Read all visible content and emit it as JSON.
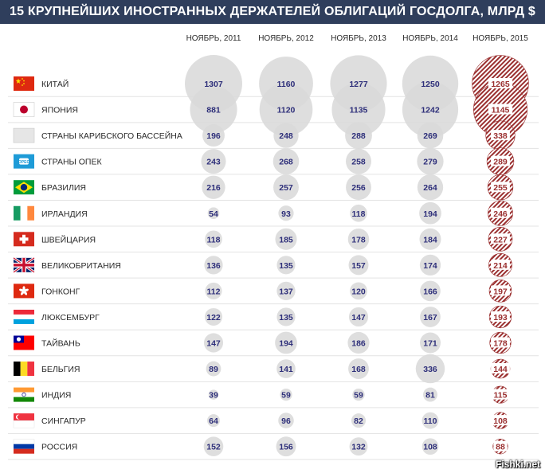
{
  "title": "15 КРУПНЕЙШИХ ИНОСТРАННЫХ ДЕРЖАТЕЛЕЙ ОБЛИГАЦИЙ ГОСДОЛГА, МЛРД $",
  "watermark": "Fishki.net",
  "colors": {
    "header_bg": "#2f3e5c",
    "bubble": "#d9d9d9",
    "bubble_text": "#2e2f7a",
    "highlight": "#9a2f2f",
    "highlight_text": "#9a2f2f",
    "row_separator": "#e3e3e3"
  },
  "chart_data": {
    "type": "bubble-table",
    "title": "15 КРУПНЕЙШИХ ИНОСТРАННЫХ ДЕРЖАТЕЛЕЙ ОБЛИГАЦИЙ ГОСДОЛГА, МЛРД $",
    "columns": [
      "НОЯБРЬ, 2011",
      "НОЯБРЬ, 2012",
      "НОЯБРЬ, 2013",
      "НОЯБРЬ, 2014",
      "НОЯБРЬ, 2015"
    ],
    "highlight_column": 4,
    "rows": [
      {
        "country": "КИТАЙ",
        "flag": "china-flag",
        "values": [
          1307,
          1160,
          1277,
          1250,
          1265
        ]
      },
      {
        "country": "ЯПОНИЯ",
        "flag": "japan-flag",
        "values": [
          881,
          1120,
          1135,
          1242,
          1145
        ]
      },
      {
        "country": "СТРАНЫ КАРИБСКОГО БАССЕЙНА",
        "flag": "caribbean-flag",
        "values": [
          196,
          248,
          288,
          269,
          338
        ]
      },
      {
        "country": "СТРАНЫ ОПЕК",
        "flag": "opec-flag",
        "values": [
          243,
          268,
          258,
          279,
          289
        ]
      },
      {
        "country": "БРАЗИЛИЯ",
        "flag": "brazil-flag",
        "values": [
          216,
          257,
          256,
          264,
          255
        ]
      },
      {
        "country": "ИРЛАНДИЯ",
        "flag": "ireland-flag",
        "values": [
          54,
          93,
          118,
          194,
          246
        ]
      },
      {
        "country": "ШВЕЙЦАРИЯ",
        "flag": "switzerland-flag",
        "values": [
          118,
          185,
          178,
          184,
          227
        ]
      },
      {
        "country": "ВЕЛИКОБРИТАНИЯ",
        "flag": "uk-flag",
        "values": [
          136,
          135,
          157,
          174,
          214
        ]
      },
      {
        "country": "ГОНКОНГ",
        "flag": "hongkong-flag",
        "values": [
          112,
          137,
          120,
          166,
          197
        ]
      },
      {
        "country": "ЛЮКСЕМБУРГ",
        "flag": "luxembourg-flag",
        "values": [
          122,
          135,
          147,
          167,
          193
        ]
      },
      {
        "country": "ТАЙВАНЬ",
        "flag": "taiwan-flag",
        "values": [
          147,
          194,
          186,
          171,
          178
        ]
      },
      {
        "country": "БЕЛЬГИЯ",
        "flag": "belgium-flag",
        "values": [
          89,
          141,
          168,
          336,
          144
        ]
      },
      {
        "country": "ИНДИЯ",
        "flag": "india-flag",
        "values": [
          39,
          59,
          59,
          81,
          115
        ]
      },
      {
        "country": "СИНГАПУР",
        "flag": "singapore-flag",
        "values": [
          64,
          96,
          82,
          110,
          108
        ]
      },
      {
        "country": "РОССИЯ",
        "flag": "russia-flag",
        "values": [
          152,
          156,
          132,
          108,
          88
        ]
      }
    ]
  }
}
